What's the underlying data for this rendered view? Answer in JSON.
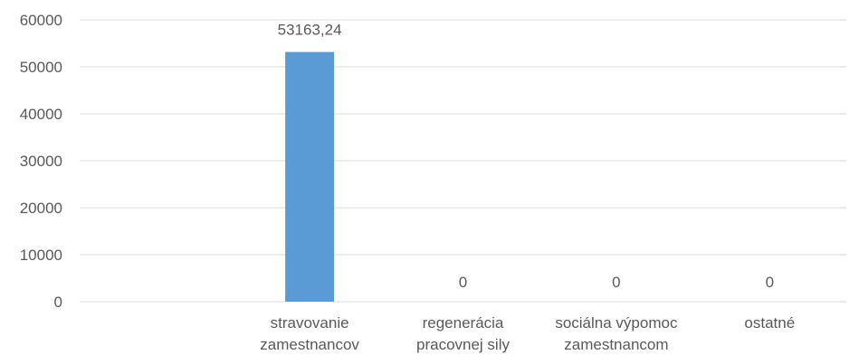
{
  "chart_data": {
    "type": "bar",
    "categories": [
      "",
      "stravovanie zamestnancov",
      "regenerácia pracovnej sily",
      "sociálna výpomoc zamestnancom",
      "ostatné"
    ],
    "category_lines": [
      [],
      [
        "stravovanie",
        "zamestnancov"
      ],
      [
        "regenerácia",
        "pracovnej sily"
      ],
      [
        "sociálna výpomoc",
        "zamestnancom"
      ],
      [
        "ostatné"
      ]
    ],
    "values": [
      null,
      53163.24,
      0,
      0,
      0
    ],
    "data_labels": [
      "",
      "53163,24",
      "0",
      "0",
      "0"
    ],
    "yticks": [
      0,
      10000,
      20000,
      30000,
      40000,
      50000,
      60000
    ],
    "ylim": [
      0,
      60000
    ],
    "grid": true,
    "title": "",
    "xlabel": "",
    "ylabel": "",
    "colors": {
      "bar": "#5B9BD5",
      "grid": "#D9D9D9",
      "text": "#595959"
    }
  }
}
